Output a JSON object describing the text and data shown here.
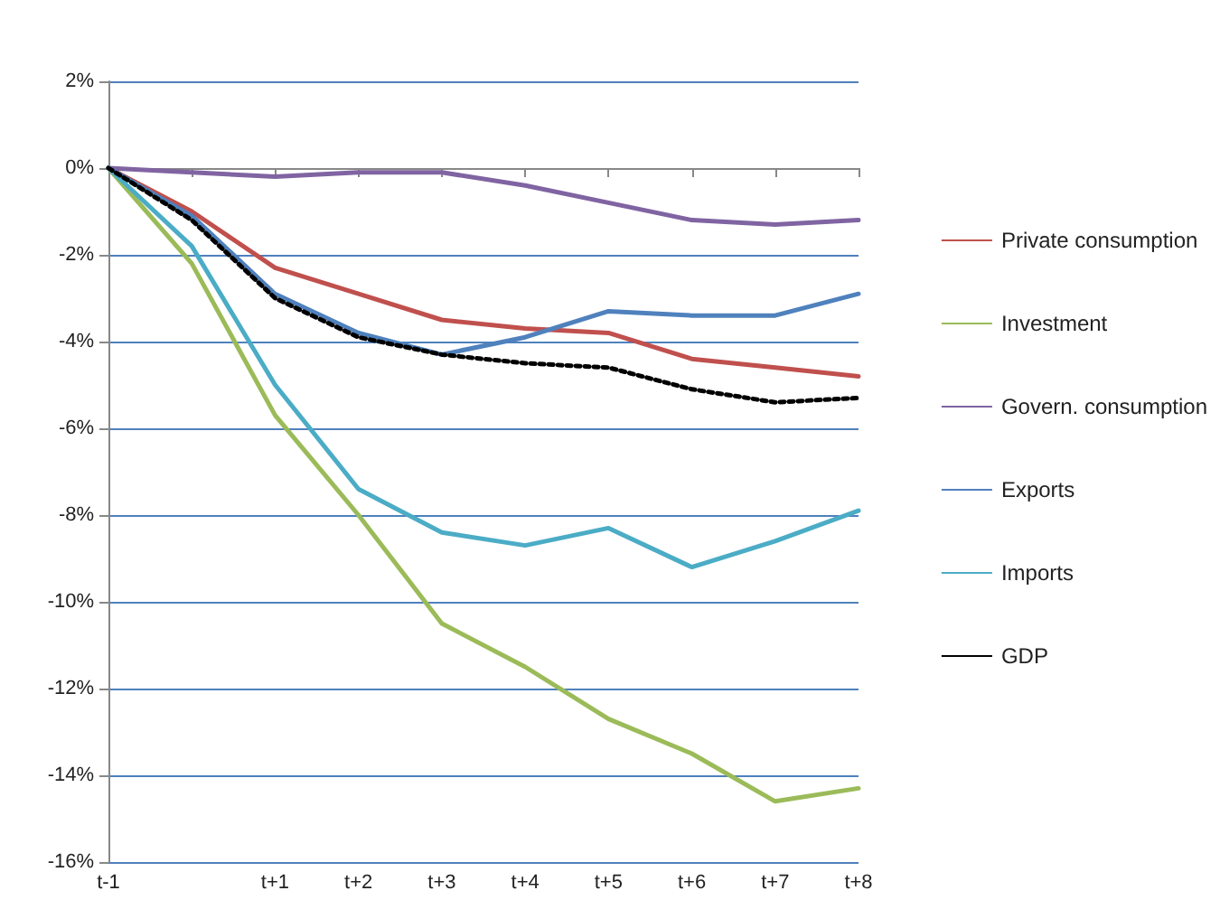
{
  "chart_data": {
    "type": "line",
    "categories": [
      "t-1",
      null,
      "t+1",
      "t+2",
      "t+3",
      "t+4",
      "t+5",
      "t+6",
      "t+7",
      "t+8"
    ],
    "series": [
      {
        "name": "Private consumption",
        "color": "#c0504d",
        "values": [
          0,
          -1.0,
          -2.3,
          -2.9,
          -3.5,
          -3.7,
          -3.8,
          -4.4,
          -4.6,
          -4.8
        ]
      },
      {
        "name": "Investment",
        "color": "#9bbb59",
        "values": [
          0,
          -2.2,
          -5.7,
          -8.0,
          -10.5,
          -11.5,
          -12.7,
          -13.5,
          -14.6,
          -14.3
        ]
      },
      {
        "name": "Govern. consumption",
        "color": "#8064a2",
        "values": [
          0,
          -0.1,
          -0.2,
          -0.1,
          -0.1,
          -0.4,
          -0.8,
          -1.2,
          -1.3,
          -1.2
        ]
      },
      {
        "name": "Exports",
        "color": "#4f81bd",
        "values": [
          0,
          -1.1,
          -2.9,
          -3.8,
          -4.3,
          -3.9,
          -3.3,
          -3.4,
          -3.4,
          -2.9
        ]
      },
      {
        "name": "Imports",
        "color": "#4bacc6",
        "values": [
          0,
          -1.8,
          -5.0,
          -7.4,
          -8.4,
          -8.7,
          -8.3,
          -9.2,
          -8.6,
          -7.9
        ]
      },
      {
        "name": "GDP",
        "color": "#000000",
        "line_style": "dotted",
        "values": [
          0,
          -1.2,
          -3.0,
          -3.9,
          -4.3,
          -4.5,
          -4.6,
          -5.1,
          -5.4,
          -5.3
        ]
      }
    ],
    "ylim": [
      -16,
      2
    ],
    "yticks": [
      {
        "value": -16,
        "label": "-16%"
      },
      {
        "value": -14,
        "label": "-14%"
      },
      {
        "value": -12,
        "label": "-12%"
      },
      {
        "value": -10,
        "label": "-10%"
      },
      {
        "value": -8,
        "label": "-8%"
      },
      {
        "value": -6,
        "label": "-6%"
      },
      {
        "value": -4,
        "label": "-4%"
      },
      {
        "value": -2,
        "label": "-2%"
      },
      {
        "value": 0,
        "label": "0%"
      },
      {
        "value": 2,
        "label": "2%"
      }
    ],
    "grid": "y",
    "legend": "right",
    "marker": "none",
    "line_style": "solid"
  }
}
